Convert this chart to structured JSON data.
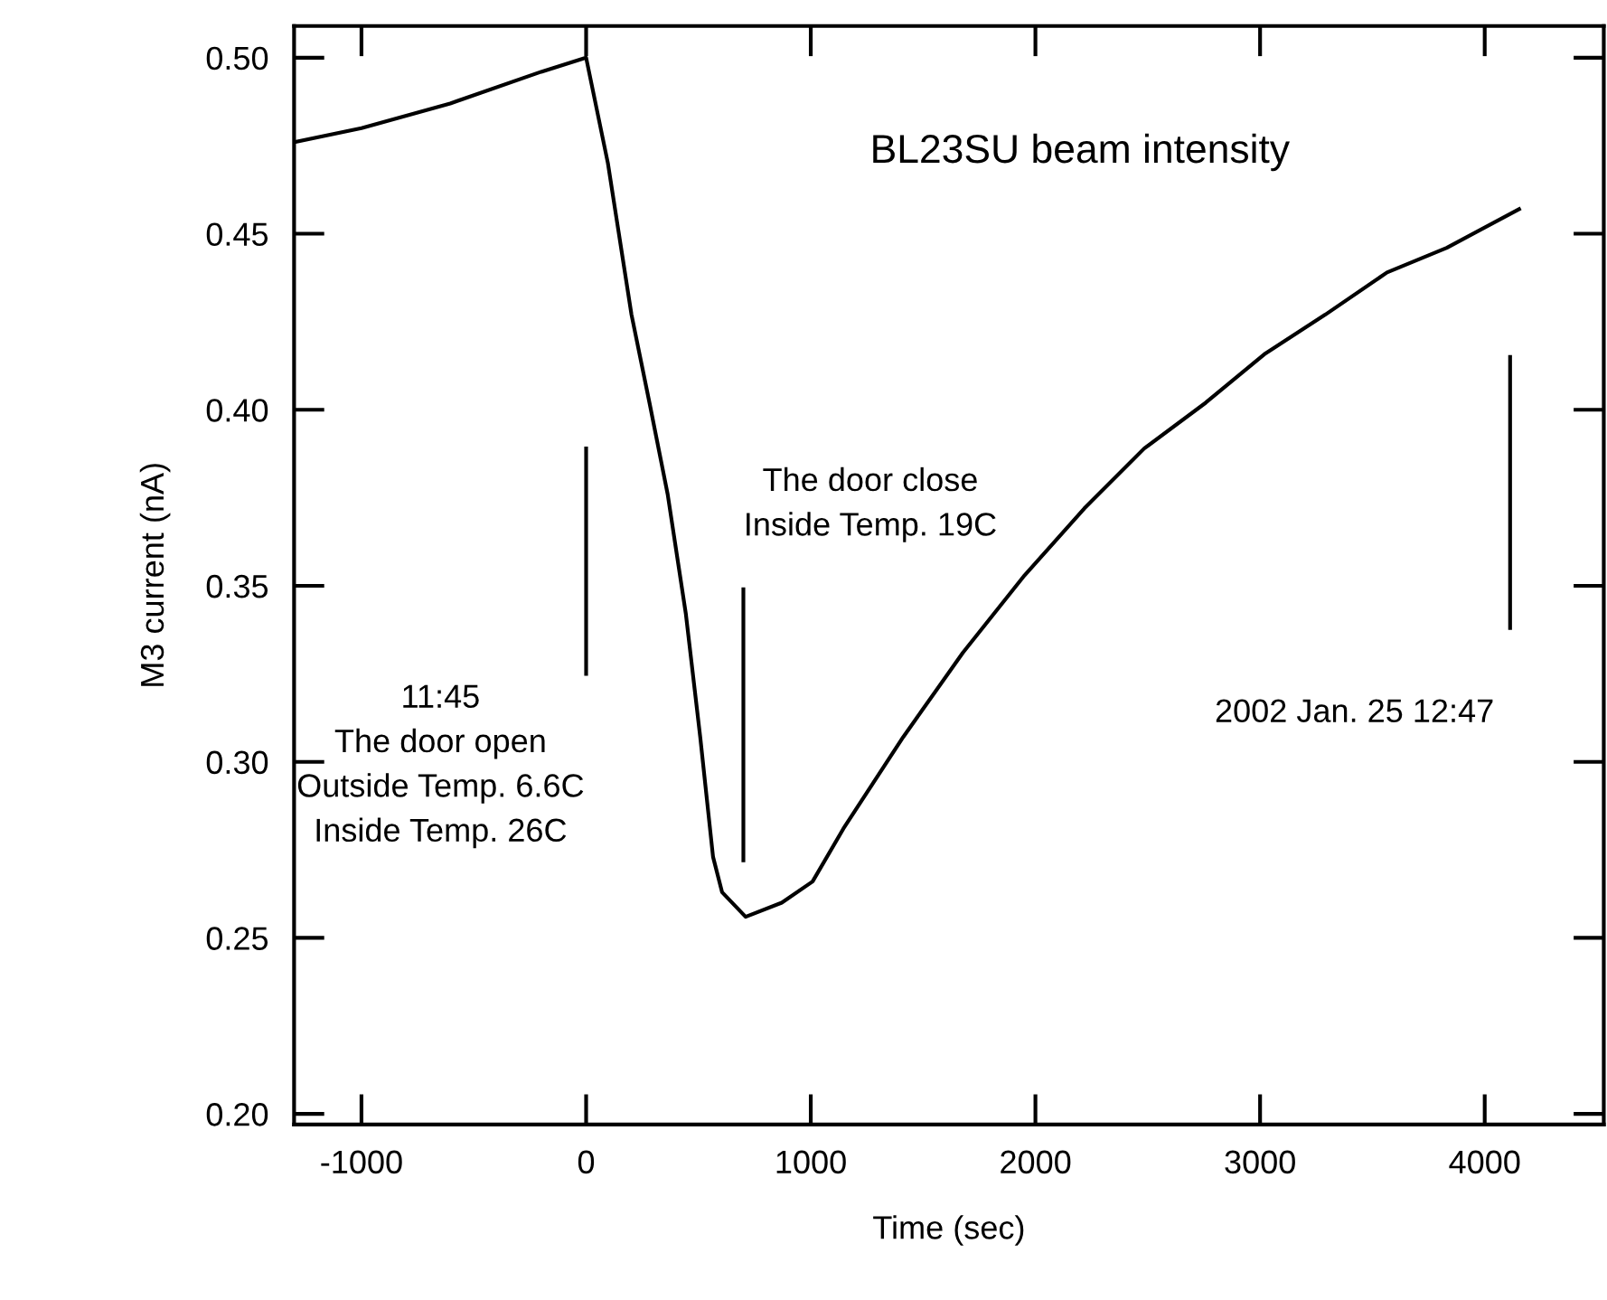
{
  "chart_data": {
    "type": "line",
    "title": "BL23SU beam intensity",
    "xlabel": "Time (sec)",
    "ylabel": "M3 current (nA)",
    "xlim": [
      -1300,
      4530
    ],
    "xticks": [
      -1000,
      0,
      1000,
      2000,
      3000,
      4000
    ],
    "ylim": [
      0.197,
      0.509
    ],
    "yticks": [
      {
        "value": 0.2,
        "label": "0.20"
      },
      {
        "value": 0.25,
        "label": "0.25"
      },
      {
        "value": 0.3,
        "label": "0.30"
      },
      {
        "value": 0.35,
        "label": "0.35"
      },
      {
        "value": 0.4,
        "label": "0.40"
      },
      {
        "value": 0.45,
        "label": "0.45"
      },
      {
        "value": 0.5,
        "label": "0.50"
      }
    ],
    "grid": false,
    "marker": "none",
    "line_style": "solid",
    "series": [
      {
        "color": "#000000",
        "x": [
          -1300,
          -1000,
          -605,
          -200,
          0,
          97,
          202,
          282,
          363,
          444,
          508,
          565,
          605,
          710,
          871,
          1008,
          1145,
          1411,
          1677,
          1952,
          2218,
          2484,
          2758,
          3024,
          3290,
          3565,
          3831,
          4153
        ],
        "values": [
          0.476,
          0.48,
          0.487,
          0.496,
          0.5,
          0.47,
          0.427,
          0.402,
          0.376,
          0.342,
          0.307,
          0.273,
          0.263,
          0.256,
          0.26,
          0.266,
          0.281,
          0.307,
          0.331,
          0.353,
          0.372,
          0.389,
          0.402,
          0.416,
          0.427,
          0.439,
          0.446,
          0.457
        ]
      },
      {
        "color": "#000000",
        "x": [
          0,
          0
        ],
        "values": [
          0.325,
          0.389
        ]
      },
      {
        "color": "#000000",
        "x": [
          700,
          700
        ],
        "values": [
          0.272,
          0.349
        ]
      },
      {
        "color": "#000000",
        "x": [
          4113,
          4113
        ],
        "values": [
          0.338,
          0.415
        ]
      }
    ],
    "annotations": [
      {
        "text": "11:45\nThe door open\nOutside Temp. 6.6C\nInside Temp. 26C",
        "x": 0,
        "y": 0.325
      },
      "The door close\nInside Temp. 19C",
      {
        "text": "2002 Jan. 25 12:47",
        "x": 4113,
        "y": 0.338
      }
    ]
  }
}
